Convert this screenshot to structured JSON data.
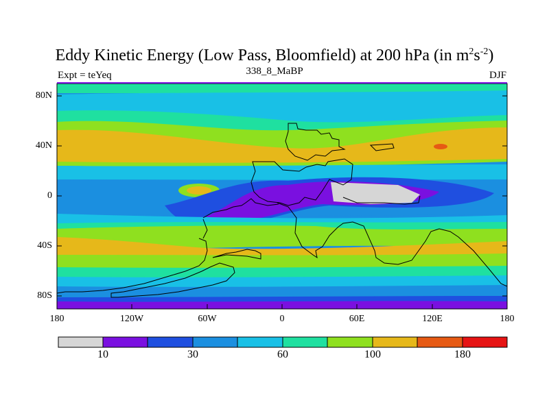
{
  "title": "Eddy Kinetic Energy (Low Pass, Bloomfield) at 200 hPa (in m",
  "title_unit_sup1": "2",
  "title_unit_mid": "s",
  "title_unit_sup2": "-2",
  "title_close": ")",
  "subtitle": "338_8_MaBP",
  "left_label": "Expt = teYeq",
  "right_label": "DJF",
  "chart_data": {
    "type": "heatmap",
    "projection": "cylindrical-equidistant",
    "y_ticks": [
      "80N",
      "40N",
      "0",
      "40S",
      "80S"
    ],
    "x_ticks": [
      "180",
      "120W",
      "60W",
      "0",
      "60E",
      "120E",
      "180"
    ],
    "colorbar": {
      "labels": [
        "10",
        "30",
        "60",
        "100",
        "180"
      ],
      "colors": [
        "#d6d6d6",
        "#7a10e0",
        "#1f4fe0",
        "#1b8fe0",
        "#19c0e6",
        "#1fe0a0",
        "#8fe01f",
        "#e6b81a",
        "#e65a14",
        "#e61414"
      ]
    },
    "colors": {
      "gray": "#d6d6d6",
      "purple": "#7a10e0",
      "blue": "#1f4fe0",
      "midblue": "#1b8fe0",
      "cyan": "#19c0e6",
      "teal": "#1fe0a0",
      "green": "#8fe01f",
      "yellow": "#e6b81a",
      "orange": "#e65a14",
      "red": "#e61414"
    }
  }
}
